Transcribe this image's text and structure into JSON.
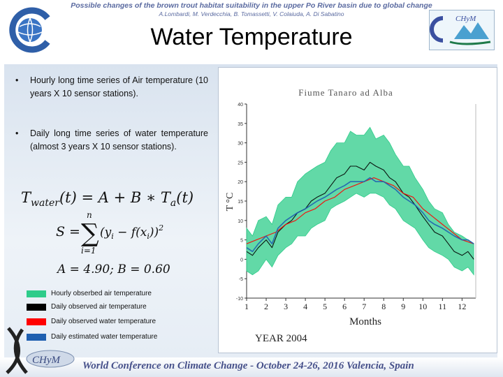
{
  "header": {
    "title": "Possible changes of the brown trout habitat suitability in the upper Po River basin due to global change",
    "authors": "A.Lombardi, M. Verdecchia, B. Tomassetti, V. Colaiuda, A. Di Sabatino",
    "logo_right_text": "CHyM"
  },
  "slide": {
    "title": "Water Temperature",
    "bullets": [
      "Hourly long time series of Air temperature (10 years X 10 sensor stations).",
      "Daily long time series of water temperature (almost 3 years X 10 sensor stations)."
    ],
    "bullet_glyph": "•",
    "equations": {
      "eq1_lhs": "T",
      "eq1_lhs_sub": "water",
      "eq1_mid": "(t) = A + B ∗ T",
      "eq1_sub2": "a",
      "eq1_end": "(t)",
      "eq2_lhs": "S =",
      "eq2_sum": "∑",
      "eq2_upper": "n",
      "eq2_lower": "i=1",
      "eq2_body": "(y",
      "eq2_i1": "i",
      "eq2_mid": " − f(x",
      "eq2_i2": "i",
      "eq2_end": "))",
      "eq2_pow": "2",
      "eq3": "A = 4.90;  B = 0.60"
    },
    "legend": [
      {
        "label": "Hourly obserbed air temperature",
        "color": "#2ecc8a"
      },
      {
        "label": "Daily observed air temperature",
        "color": "#000000"
      },
      {
        "label": "Daily observed water temperature",
        "color": "#ff0000"
      },
      {
        "label": "Daily estimated water temperature",
        "color": "#1f5fb0"
      }
    ],
    "footer": "World Conference on Climate Change - October 24-26, 2016 Valencia, Spain",
    "logo_bottom_text": "CHyM"
  },
  "chart_data": {
    "type": "line",
    "title": "Fiume Tanaro ad Alba",
    "xlabel": "Months",
    "ylabel": "T °C",
    "caption": "YEAR 2004",
    "xlim": [
      1,
      12.7
    ],
    "ylim": [
      -10,
      40
    ],
    "x_ticks": [
      1,
      2,
      3,
      4,
      5,
      6,
      7,
      8,
      9,
      10,
      11,
      12
    ],
    "y_ticks": [
      -10,
      -5,
      0,
      5,
      10,
      15,
      20,
      25,
      30,
      35,
      40
    ],
    "grid": false,
    "series": [
      {
        "name": "Hourly obserbed air temperature",
        "color": "#2ecc8a",
        "style": "band",
        "x": [
          1.0,
          1.3,
          1.6,
          2.0,
          2.3,
          2.6,
          3.0,
          3.3,
          3.6,
          4.0,
          4.3,
          4.6,
          5.0,
          5.3,
          5.6,
          6.0,
          6.3,
          6.6,
          7.0,
          7.3,
          7.6,
          8.0,
          8.3,
          8.6,
          9.0,
          9.3,
          9.6,
          10.0,
          10.3,
          10.6,
          11.0,
          11.3,
          11.6,
          12.0,
          12.3,
          12.6
        ],
        "low": [
          -3,
          -4,
          -3,
          0,
          -2,
          1,
          3,
          4,
          6,
          6,
          8,
          9,
          10,
          13,
          14,
          15,
          16,
          17,
          16,
          17,
          17,
          16,
          14,
          13,
          10,
          9,
          8,
          5,
          3,
          2,
          1,
          0,
          -2,
          -3,
          -2,
          -4
        ],
        "high": [
          8,
          6,
          10,
          11,
          9,
          14,
          16,
          16,
          20,
          22,
          23,
          24,
          25,
          28,
          30,
          30,
          33,
          32,
          32,
          34,
          31,
          32,
          30,
          27,
          24,
          24,
          21,
          18,
          15,
          13,
          12,
          9,
          7,
          6,
          5,
          4
        ]
      },
      {
        "name": "Daily observed air temperature",
        "color": "#000000",
        "x": [
          1.0,
          1.3,
          1.6,
          2.0,
          2.3,
          2.6,
          3.0,
          3.3,
          3.6,
          4.0,
          4.3,
          4.6,
          5.0,
          5.3,
          5.6,
          6.0,
          6.3,
          6.6,
          7.0,
          7.3,
          7.6,
          8.0,
          8.3,
          8.6,
          9.0,
          9.3,
          9.6,
          10.0,
          10.3,
          10.6,
          11.0,
          11.3,
          11.6,
          12.0,
          12.3,
          12.6
        ],
        "y": [
          2,
          1,
          3,
          5,
          3,
          7,
          9,
          10,
          12,
          13,
          15,
          16,
          17,
          19,
          21,
          22,
          24,
          24,
          23,
          25,
          24,
          23,
          21,
          20,
          17,
          16,
          14,
          11,
          9,
          7,
          6,
          4,
          2,
          1,
          2,
          0
        ]
      },
      {
        "name": "Daily observed water temperature",
        "color": "#ff0000",
        "x": [
          1.0,
          1.5,
          2.0,
          2.5,
          3.0,
          3.5,
          4.0,
          4.5,
          5.0,
          5.5,
          6.0,
          6.5,
          7.0,
          7.5,
          8.0,
          8.5,
          9.0,
          9.5,
          10.0,
          10.5,
          11.0,
          11.5,
          12.0,
          12.6
        ],
        "y": [
          4,
          5,
          6,
          7,
          9,
          10,
          12,
          13,
          15,
          16,
          18,
          19,
          20,
          21,
          20,
          19,
          17,
          16,
          13,
          11,
          9,
          7,
          5,
          4
        ]
      },
      {
        "name": "Daily estimated water temperature",
        "color": "#1f5fb0",
        "x": [
          1.0,
          1.3,
          1.6,
          2.0,
          2.3,
          2.6,
          3.0,
          3.3,
          3.6,
          4.0,
          4.3,
          4.6,
          5.0,
          5.3,
          5.6,
          6.0,
          6.3,
          6.6,
          7.0,
          7.3,
          7.6,
          8.0,
          8.3,
          8.6,
          9.0,
          9.3,
          9.6,
          10.0,
          10.3,
          10.6,
          11.0,
          11.3,
          11.6,
          12.0,
          12.3,
          12.6
        ],
        "y": [
          3,
          2,
          4,
          6,
          4,
          8,
          10,
          11,
          12,
          13,
          14,
          15,
          16,
          17,
          18,
          19,
          20,
          20,
          20,
          21,
          20,
          20,
          19,
          18,
          16,
          15,
          14,
          12,
          10,
          9,
          8,
          7,
          6,
          5,
          5,
          4
        ]
      }
    ]
  }
}
